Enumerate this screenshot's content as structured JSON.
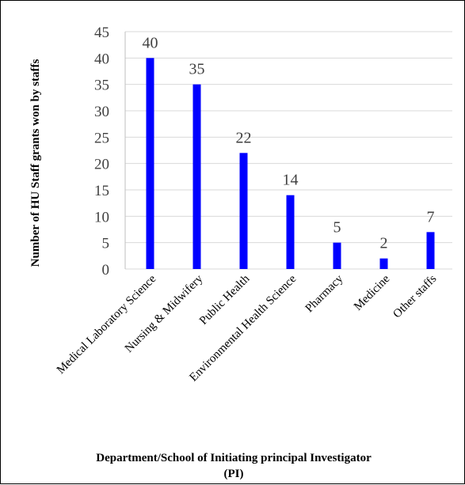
{
  "chart_data": {
    "type": "bar",
    "title": "",
    "xlabel": "Department/School of Initiating principal Investigator (PI)",
    "xlabel_lines": [
      "Department/School of Initiating principal Investigator",
      "(PI)"
    ],
    "ylabel": "Number of  HU Staff grants won by staffs",
    "categories": [
      "Medical Laboratory Science",
      "Nursing & Midwifery",
      "Public Health",
      "Environmental Health Science",
      "Pharmacy",
      "Medicine",
      "Other staffs"
    ],
    "values": [
      40,
      35,
      22,
      14,
      5,
      2,
      7
    ],
    "yticks": [
      0,
      5,
      10,
      15,
      20,
      25,
      30,
      35,
      40,
      45
    ],
    "ylim": [
      0,
      45
    ],
    "grid": true,
    "legend": "none",
    "bar_color": "#0000ff"
  }
}
